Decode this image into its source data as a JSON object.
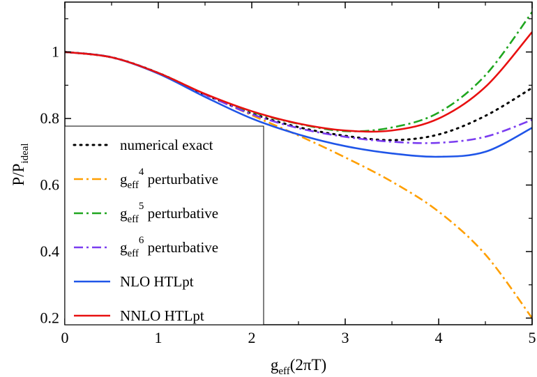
{
  "chart_data": {
    "type": "line",
    "xlabel": {
      "main": "g",
      "sub": "eff",
      "tail": "(2πT)"
    },
    "ylabel": {
      "main": "P/P",
      "sub": "ideal"
    },
    "xlim": [
      0,
      5
    ],
    "ylim": [
      0.18,
      1.15
    ],
    "xticks": [
      0,
      1,
      2,
      3,
      4,
      5
    ],
    "yticks": [
      0.2,
      0.4,
      0.6,
      0.8,
      1
    ],
    "ytick_labels": [
      "0.2",
      "0.4",
      "0.6",
      "0.8",
      "1"
    ],
    "grid": false,
    "legend_position": "lower-left",
    "series": [
      {
        "name": "numerical exact",
        "color": "#000000",
        "dash": "dot",
        "x": [
          0,
          0.5,
          1,
          1.5,
          2,
          2.5,
          3,
          3.5,
          4,
          4.5,
          5
        ],
        "y": [
          1.0,
          0.984,
          0.937,
          0.872,
          0.815,
          0.774,
          0.748,
          0.735,
          0.752,
          0.808,
          0.892
        ]
      },
      {
        "name": "g_eff^4 perturbative",
        "label_parts": {
          "main": "g",
          "sub": "eff",
          "sup": "4",
          "tail": " perturbative"
        },
        "color": "#ff9f00",
        "dash": "dashdot",
        "x": [
          0,
          0.5,
          1,
          1.5,
          2,
          2.5,
          3,
          3.5,
          4,
          4.5,
          5
        ],
        "y": [
          1.0,
          0.984,
          0.937,
          0.873,
          0.81,
          0.749,
          0.683,
          0.61,
          0.52,
          0.391,
          0.2
        ]
      },
      {
        "name": "g_eff^5 perturbative",
        "label_parts": {
          "main": "g",
          "sub": "eff",
          "sup": "5",
          "tail": " perturbative"
        },
        "color": "#1fa61f",
        "dash": "dashdot",
        "x": [
          0,
          0.5,
          1,
          1.5,
          2,
          2.5,
          3,
          3.5,
          4,
          4.5,
          5
        ],
        "y": [
          1.0,
          0.984,
          0.937,
          0.873,
          0.82,
          0.784,
          0.762,
          0.773,
          0.818,
          0.93,
          1.12
        ]
      },
      {
        "name": "g_eff^6 perturbative",
        "label_parts": {
          "main": "g",
          "sub": "eff",
          "sup": "6",
          "tail": " perturbative"
        },
        "color": "#7a3cf0",
        "dash": "dashdot",
        "x": [
          0,
          0.5,
          1,
          1.5,
          2,
          2.5,
          3,
          3.5,
          4,
          4.5,
          5
        ],
        "y": [
          1.0,
          0.984,
          0.937,
          0.872,
          0.813,
          0.771,
          0.745,
          0.73,
          0.727,
          0.745,
          0.796
        ]
      },
      {
        "name": "NLO HTLpt",
        "color": "#1f55e8",
        "dash": "solid",
        "x": [
          0,
          0.5,
          1,
          1.5,
          2,
          2.5,
          3,
          3.5,
          4,
          4.5,
          5
        ],
        "y": [
          1.0,
          0.984,
          0.935,
          0.865,
          0.8,
          0.752,
          0.717,
          0.695,
          0.685,
          0.7,
          0.772
        ]
      },
      {
        "name": "NNLO HTLpt",
        "color": "#e81010",
        "dash": "solid",
        "x": [
          0,
          0.5,
          1,
          1.5,
          2,
          2.5,
          3,
          3.5,
          4,
          4.5,
          5
        ],
        "y": [
          1.0,
          0.984,
          0.937,
          0.874,
          0.822,
          0.785,
          0.764,
          0.764,
          0.8,
          0.895,
          1.06
        ]
      }
    ]
  }
}
